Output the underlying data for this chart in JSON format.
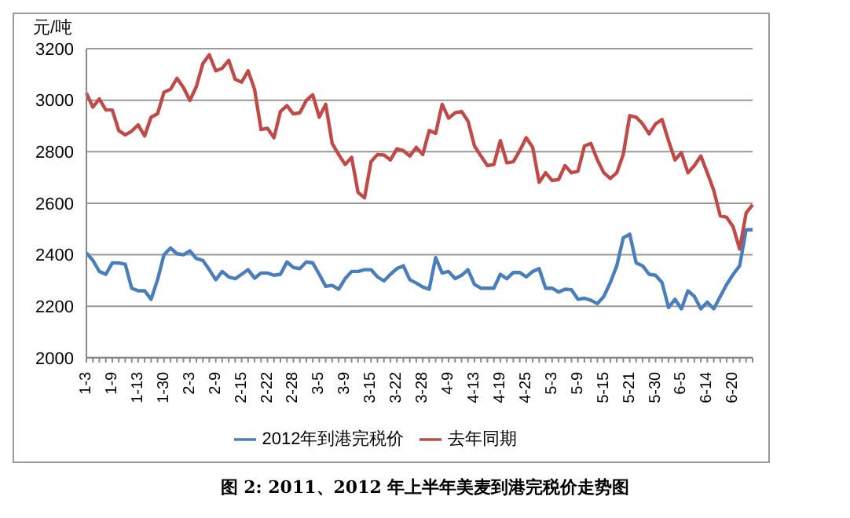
{
  "chart_data": {
    "type": "line",
    "title": "图 2: 2011、2012 年上半年美麦到港完税价走势图",
    "ylabel": "元/吨",
    "categories": [
      "1-3",
      null,
      null,
      null,
      "1-9",
      null,
      null,
      null,
      "1-13",
      null,
      null,
      null,
      "1-30",
      null,
      null,
      null,
      "2-3",
      null,
      null,
      null,
      "2-9",
      null,
      null,
      null,
      "2-15",
      null,
      null,
      null,
      "2-22",
      null,
      null,
      null,
      "2-28",
      null,
      null,
      null,
      "3-5",
      null,
      null,
      null,
      "3-9",
      null,
      null,
      null,
      "3-15",
      null,
      null,
      null,
      "3-22",
      null,
      null,
      null,
      "3-28",
      null,
      null,
      null,
      "4-9",
      null,
      null,
      null,
      "4-13",
      null,
      null,
      null,
      "4-19",
      null,
      null,
      null,
      "4-25",
      null,
      null,
      null,
      "5-3",
      null,
      null,
      null,
      "5-9",
      null,
      null,
      null,
      "5-15",
      null,
      null,
      null,
      "5-21",
      null,
      null,
      null,
      "5-30",
      null,
      null,
      null,
      "6-5",
      null,
      null,
      null,
      "6-14",
      null,
      null,
      null,
      "6-20",
      null,
      null,
      null
    ],
    "series": [
      {
        "name": "2012年到港完税价",
        "color": "#4a7ebb",
        "values": [
          2407,
          2378,
          2335,
          2324,
          2368,
          2368,
          2363,
          2270,
          2260,
          2260,
          2227,
          2303,
          2400,
          2426,
          2404,
          2400,
          2415,
          2385,
          2378,
          2342,
          2303,
          2335,
          2314,
          2307,
          2324,
          2342,
          2309,
          2329,
          2329,
          2320,
          2324,
          2372,
          2350,
          2346,
          2372,
          2368,
          2324,
          2277,
          2281,
          2266,
          2307,
          2335,
          2335,
          2342,
          2342,
          2314,
          2298,
          2324,
          2346,
          2357,
          2303,
          2290,
          2275,
          2266,
          2389,
          2329,
          2335,
          2307,
          2320,
          2342,
          2285,
          2270,
          2270,
          2270,
          2324,
          2307,
          2331,
          2331,
          2314,
          2335,
          2346,
          2270,
          2270,
          2255,
          2266,
          2264,
          2227,
          2231,
          2223,
          2210,
          2238,
          2292,
          2357,
          2465,
          2480,
          2368,
          2357,
          2324,
          2320,
          2292,
          2195,
          2227,
          2190,
          2260,
          2238,
          2190,
          2216,
          2190,
          2238,
          2285,
          2324,
          2357,
          2497,
          2497
        ]
      },
      {
        "name": "去年同期",
        "color": "#be4b48",
        "values": [
          3027,
          2973,
          3005,
          2962,
          2962,
          2882,
          2865,
          2880,
          2904,
          2861,
          2934,
          2947,
          3031,
          3042,
          3085,
          3049,
          2999,
          3053,
          3142,
          3176,
          3114,
          3124,
          3155,
          3081,
          3070,
          3114,
          3042,
          2886,
          2891,
          2854,
          2956,
          2979,
          2947,
          2951,
          2999,
          3021,
          2934,
          2984,
          2832,
          2789,
          2750,
          2778,
          2642,
          2621,
          2761,
          2789,
          2787,
          2768,
          2811,
          2804,
          2783,
          2817,
          2789,
          2882,
          2871,
          2984,
          2930,
          2951,
          2956,
          2919,
          2822,
          2783,
          2746,
          2750,
          2843,
          2757,
          2761,
          2804,
          2854,
          2817,
          2681,
          2718,
          2688,
          2692,
          2746,
          2718,
          2724,
          2822,
          2832,
          2768,
          2718,
          2696,
          2718,
          2789,
          2940,
          2934,
          2908,
          2869,
          2908,
          2925,
          2843,
          2768,
          2796,
          2718,
          2746,
          2783,
          2718,
          2649,
          2551,
          2545,
          2508,
          2422,
          2562,
          2594
        ]
      }
    ],
    "ylim": [
      2000,
      3200
    ],
    "yticks": [
      2000,
      2200,
      2400,
      2600,
      2800,
      3000,
      3200
    ],
    "grid": "y",
    "legend": "bottom",
    "marker": "none",
    "line_style": "solid"
  }
}
